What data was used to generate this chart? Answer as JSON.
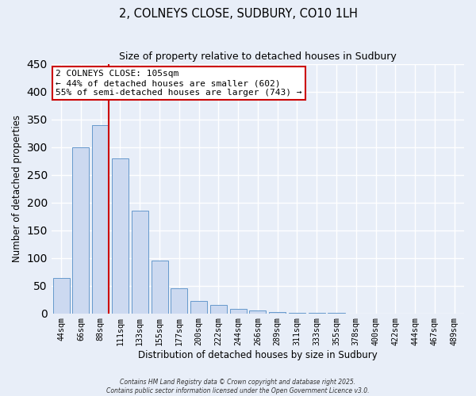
{
  "title": "2, COLNEYS CLOSE, SUDBURY, CO10 1LH",
  "subtitle": "Size of property relative to detached houses in Sudbury",
  "xlabel": "Distribution of detached houses by size in Sudbury",
  "ylabel": "Number of detached properties",
  "bar_labels": [
    "44sqm",
    "66sqm",
    "88sqm",
    "111sqm",
    "133sqm",
    "155sqm",
    "177sqm",
    "200sqm",
    "222sqm",
    "244sqm",
    "266sqm",
    "289sqm",
    "311sqm",
    "333sqm",
    "355sqm",
    "378sqm",
    "400sqm",
    "422sqm",
    "444sqm",
    "467sqm",
    "489sqm"
  ],
  "bar_values": [
    63,
    300,
    340,
    280,
    185,
    95,
    45,
    22,
    15,
    8,
    5,
    2,
    1,
    1,
    1,
    0,
    0,
    0,
    0,
    0,
    0
  ],
  "bar_color": "#ccd9f0",
  "bar_edge_color": "#6699cc",
  "ylim": [
    0,
    450
  ],
  "yticks": [
    0,
    50,
    100,
    150,
    200,
    250,
    300,
    350,
    400,
    450
  ],
  "vline_x_index": 2,
  "vline_color": "#cc0000",
  "annotation_title": "2 COLNEYS CLOSE: 105sqm",
  "annotation_line1": "← 44% of detached houses are smaller (602)",
  "annotation_line2": "55% of semi-detached houses are larger (743) →",
  "annotation_box_color": "#ffffff",
  "annotation_box_edge": "#cc0000",
  "footer1": "Contains HM Land Registry data © Crown copyright and database right 2025.",
  "footer2": "Contains public sector information licensed under the Open Government Licence v3.0.",
  "background_color": "#e8eef8",
  "grid_color": "#ffffff"
}
